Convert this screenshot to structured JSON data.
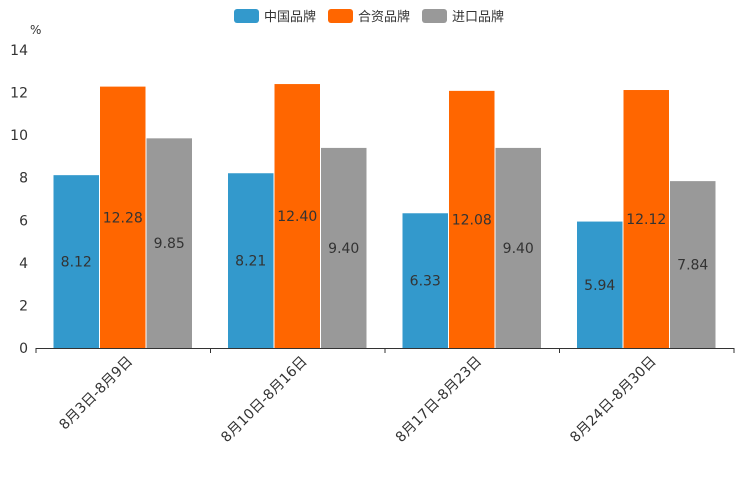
{
  "chart_data": {
    "type": "bar",
    "title": "",
    "xlabel": "",
    "ylabel": "%",
    "ylim": [
      0,
      14
    ],
    "yticks": [
      0,
      2,
      4,
      6,
      8,
      10,
      12,
      14
    ],
    "grid": false,
    "legend_position": "top-center",
    "categories": [
      "8月3日-8月9日",
      "8月10日-8月16日",
      "8月17日-8月23日",
      "8月24日-8月30日"
    ],
    "series": [
      {
        "name": "中国品牌",
        "color": "#3399cc",
        "values": [
          8.12,
          8.21,
          6.33,
          5.94
        ]
      },
      {
        "name": "合资品牌",
        "color": "#ff6600",
        "values": [
          12.28,
          12.4,
          12.08,
          12.12
        ]
      },
      {
        "name": "进口品牌",
        "color": "#999999",
        "values": [
          9.85,
          9.4,
          9.4,
          7.84
        ]
      }
    ]
  }
}
